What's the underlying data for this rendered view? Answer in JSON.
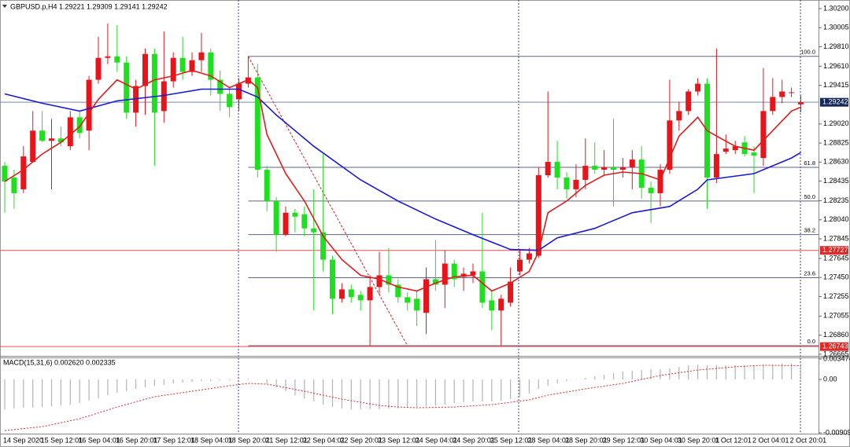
{
  "chart_data": [
    {
      "type": "candlestick",
      "title": "GBPUSD.p,H4  1.29221 1.29309 1.29141 1.29242",
      "categories": [
        "14 Sep 2020",
        null,
        null,
        null,
        "15 Sep 12:01",
        null,
        null,
        null,
        "16 Sep 04:01",
        null,
        null,
        null,
        "16 Sep 20:01",
        null,
        null,
        null,
        "17 Sep 12:01",
        null,
        null,
        null,
        "18 Sep 04:01",
        null,
        null,
        null,
        "18 Sep 20:01",
        null,
        null,
        null,
        "21 Sep 12:01",
        null,
        null,
        null,
        "22 Sep 04:01",
        null,
        null,
        null,
        "22 Sep 20:01",
        null,
        null,
        null,
        "23 Sep 12:01",
        null,
        null,
        null,
        "24 Sep 04:01",
        null,
        null,
        null,
        "24 Sep 20:01",
        null,
        null,
        null,
        "25 Sep 12:01",
        null,
        null,
        null,
        "28 Sep 04:01",
        null,
        null,
        null,
        "28 Sep 20:01",
        null,
        null,
        null,
        "29 Sep 12:01",
        null,
        null,
        null,
        "30 Sep 04:01",
        null,
        null,
        null,
        "30 Sep 20:01",
        null,
        null,
        null,
        "1 Oct 12:01",
        null,
        null,
        null,
        "2 Oct 04:01",
        null,
        null,
        null,
        "2 Oct 20:01",
        null
      ],
      "open": [
        1.28592,
        1.28472,
        1.28352,
        1.28632,
        1.28952,
        1.28848,
        1.28872,
        1.28792,
        1.29088,
        1.28952,
        1.29472,
        1.29696,
        1.29712,
        1.29648,
        1.29136,
        1.29408,
        1.29736,
        1.29152,
        1.29456,
        1.29696,
        1.29552,
        1.29672,
        1.29752,
        1.29472,
        1.29328,
        1.29272,
        1.29432,
        1.29496,
        1.28552,
        1.28232,
        1.27888,
        1.28112,
        1.28096,
        1.27952,
        1.27912,
        1.27632,
        1.27232,
        1.27328,
        1.27272,
        1.27216,
        1.27352,
        1.27472,
        1.27376,
        1.27248,
        1.27232,
        1.27088,
        1.27432,
        1.27376,
        1.27592,
        1.27456,
        1.27472,
        1.27512,
        1.27216,
        1.27112,
        1.27192,
        1.27512,
        1.27632,
        1.27672,
        1.28496,
        1.28632,
        1.28472,
        1.28352,
        1.28448,
        1.28592,
        1.28552,
        1.28576,
        1.28552,
        1.28576,
        1.28656,
        1.28368,
        1.28312,
        1.28552,
        1.29056,
        1.29152,
        1.29352,
        1.29432,
        1.28472,
        1.28736,
        1.28752,
        1.28832,
        1.28728,
        1.28672,
        1.29152,
        1.29296,
        1.29336,
        1.29221
      ],
      "high": [
        1.28632,
        1.28552,
        1.28792,
        1.29152,
        1.29152,
        1.29072,
        1.28992,
        1.29152,
        1.29152,
        1.29512,
        1.29912,
        1.30048,
        1.30032,
        1.29712,
        1.29472,
        1.29792,
        1.29792,
        1.29968,
        1.29752,
        1.29912,
        1.29752,
        1.29952,
        1.29792,
        1.29568,
        1.29392,
        1.29488,
        1.29712,
        1.29632,
        1.28592,
        1.28272,
        1.28176,
        1.28152,
        1.28176,
        1.28352,
        1.28712,
        1.27672,
        1.27392,
        1.27376,
        1.27312,
        1.27472,
        1.27712,
        1.27752,
        1.27432,
        1.27296,
        1.27312,
        1.27552,
        1.27832,
        1.27728,
        1.27632,
        1.27552,
        1.27592,
        1.28112,
        1.27312,
        1.27272,
        1.27552,
        1.27728,
        1.27752,
        1.28576,
        1.29352,
        1.28848,
        1.28528,
        1.28608,
        1.28872,
        1.28832,
        1.28752,
        1.29072,
        1.28672,
        1.28752,
        1.28792,
        1.28432,
        1.28608,
        1.29472,
        1.29248,
        1.29376,
        1.29488,
        1.29488,
        1.29792,
        1.28912,
        1.28848,
        1.28896,
        1.28792,
        1.29592,
        1.29488,
        1.29472,
        1.29392,
        1.29309
      ],
      "low": [
        1.28112,
        1.28152,
        1.28312,
        1.28632,
        1.28832,
        1.28352,
        1.28792,
        1.28752,
        1.28872,
        1.28752,
        1.29432,
        1.29632,
        1.29552,
        1.29072,
        1.28992,
        1.29112,
        1.28592,
        1.29032,
        1.29392,
        1.29472,
        1.29512,
        1.29552,
        1.29312,
        1.29152,
        1.29088,
        1.29152,
        1.29392,
        1.28472,
        1.28128,
        1.27712,
        1.27872,
        1.27912,
        1.27872,
        1.27112,
        1.27512,
        1.27072,
        1.27192,
        1.27192,
        1.27112,
        1.26752,
        1.27272,
        1.27296,
        1.27192,
        1.27112,
        1.26952,
        1.26872,
        1.27312,
        1.27136,
        1.27352,
        1.27312,
        1.27392,
        1.27136,
        1.26912,
        1.26752,
        1.27152,
        1.27472,
        1.27592,
        1.27648,
        1.28472,
        1.28352,
        1.28256,
        1.28272,
        1.28352,
        1.28512,
        1.28496,
        1.28176,
        1.28472,
        1.28352,
        1.28256,
        1.28008,
        1.28176,
        1.28512,
        1.28952,
        1.29112,
        1.29312,
        1.28152,
        1.28416,
        1.28712,
        1.28712,
        1.28688,
        1.28312,
        1.28592,
        1.29112,
        1.29232,
        1.29296,
        1.29141
      ],
      "close": [
        1.28432,
        1.28312,
        1.28688,
        1.28952,
        1.28848,
        1.28872,
        1.28832,
        1.29088,
        1.28928,
        1.29472,
        1.29696,
        1.29712,
        1.29648,
        1.29136,
        1.29408,
        1.29736,
        1.29136,
        1.29456,
        1.29696,
        1.29552,
        1.29672,
        1.29752,
        1.29472,
        1.29328,
        1.29192,
        1.29432,
        1.29496,
        1.28552,
        1.28232,
        1.27888,
        1.28112,
        1.28072,
        1.27952,
        1.27912,
        1.27632,
        1.27232,
        1.27328,
        1.27248,
        1.27216,
        1.27352,
        1.27472,
        1.27376,
        1.27248,
        1.27192,
        1.27112,
        1.27432,
        1.27376,
        1.27592,
        1.27432,
        1.27488,
        1.27512,
        1.27192,
        1.27112,
        1.27232,
        1.27408,
        1.27632,
        1.27696,
        1.28496,
        1.28632,
        1.28472,
        1.28352,
        1.28448,
        1.28592,
        1.28552,
        1.28576,
        1.28552,
        1.28576,
        1.28656,
        1.28368,
        1.28312,
        1.28552,
        1.29056,
        1.29152,
        1.29352,
        1.29432,
        1.28472,
        1.28712,
        1.28768,
        1.28792,
        1.28712,
        1.28696,
        1.29152,
        1.29296,
        1.29352,
        1.29344,
        1.29242
      ],
      "up_color": "#e8141a",
      "down_color": "#1fe01f",
      "ylim": [
        1.26656,
        1.30272
      ],
      "yticks": [
        {
          "value": 1.302,
          "label": "1.30200"
        },
        1.30005,
        {
          "value": 1.2981,
          "label": "1.29810"
        },
        {
          "value": 1.2961,
          "label": "1.29610"
        },
        1.29415,
        {
          "value": 1.2902,
          "label": "1.29020"
        },
        1.28825,
        {
          "value": 1.2863,
          "label": "1.28630"
        },
        1.28435,
        1.28235,
        {
          "value": 1.2804,
          "label": "1.28040"
        },
        1.27845,
        1.27645,
        {
          "value": 1.2745,
          "label": "1.27450"
        },
        1.27255,
        1.27055,
        {
          "value": 1.2686,
          "label": "1.26860"
        },
        1.26665
      ],
      "lines": [
        {
          "color": "#1a1ad0",
          "x": [
            0,
            4,
            8,
            12,
            17,
            21,
            25,
            27,
            29,
            33,
            38,
            42,
            46,
            50,
            54,
            57,
            59,
            63,
            67,
            71,
            74,
            75,
            80,
            84,
            85
          ],
          "values": [
            1.29328,
            1.29232,
            1.29152,
            1.29256,
            1.29312,
            1.29376,
            1.29376,
            1.29296,
            1.29112,
            1.28792,
            1.28448,
            1.28232,
            1.28048,
            1.27888,
            1.27736,
            1.27728,
            1.27856,
            1.27952,
            1.28112,
            1.28176,
            1.28352,
            1.28448,
            1.28512,
            1.28672,
            1.28728
          ]
        },
        {
          "color": "#e01c1c",
          "x": [
            0,
            2,
            4,
            6,
            8,
            10,
            12,
            14,
            16,
            18,
            20,
            22,
            24,
            26,
            27,
            28,
            30,
            32,
            34,
            36,
            38,
            40,
            42,
            44,
            46,
            48,
            50,
            52,
            54,
            56,
            57,
            58,
            60,
            62,
            64,
            66,
            68,
            70,
            71,
            72,
            74,
            75,
            76,
            78,
            80,
            82,
            84,
            85
          ],
          "values": [
            1.28432,
            1.28552,
            1.28712,
            1.28832,
            1.28992,
            1.29272,
            1.29472,
            1.29376,
            1.29472,
            1.29512,
            1.29568,
            1.29512,
            1.29392,
            1.29472,
            1.29392,
            1.28912,
            1.28512,
            1.28232,
            1.27872,
            1.27632,
            1.27472,
            1.27432,
            1.27352,
            1.27312,
            1.27392,
            1.27456,
            1.27472,
            1.27312,
            1.27392,
            1.27512,
            1.27712,
            1.28112,
            1.28232,
            1.28392,
            1.28496,
            1.28528,
            1.28512,
            1.28448,
            1.28672,
            1.28896,
            1.29088,
            1.28952,
            1.28896,
            1.28792,
            1.28752,
            1.28952,
            1.29152,
            1.29192
          ]
        }
      ],
      "trendline": {
        "color": "#e01c1c",
        "x": [
          26,
          43
        ],
        "values": [
          1.29712,
          1.26752
        ]
      },
      "fib_from": 26,
      "fib_color": "#5a6684",
      "fib_levels": [
        {
          "label": "100.0",
          "value": 1.29712
        },
        {
          "label": "61.8",
          "value": 1.28576
        },
        {
          "label": "50.0",
          "value": 1.28232
        },
        {
          "label": "38.2",
          "value": 1.27888
        },
        {
          "label": "23.6",
          "value": 1.27448
        },
        {
          "label": "0.0",
          "value": 1.26752
        }
      ],
      "price_lines": [
        {
          "value": 1.29242,
          "color": "#7d88a6",
          "box": "#14285a"
        },
        {
          "value": 1.27727,
          "color": "#ef4a4a",
          "box": "#e02a2a"
        },
        {
          "value": 1.26743,
          "color": "#ef4a4a",
          "box": "#e02a2a"
        }
      ]
    },
    {
      "type": "bar",
      "title": "MACD(15,31,6) 0.002620 0.002335",
      "values": [
        -0.005092,
        -0.004958,
        -0.004824,
        -0.004824,
        -0.00469,
        -0.004556,
        -0.004422,
        -0.004288,
        -0.00402,
        -0.003618,
        -0.003216,
        -0.00268,
        -0.002278,
        -0.00201,
        -0.001608,
        -0.00134,
        -0.001072,
        -0.000938,
        -0.00067,
        -0.000536,
        -0.000402,
        -0.000268,
        -0.000268,
        -0.000134,
        -0.000134,
        0,
        0.000134,
        0,
        -0.00067,
        -0.00134,
        -0.00201,
        -0.00268,
        -0.003216,
        -0.003752,
        -0.004288,
        -0.00469,
        -0.004958,
        -0.005092,
        -0.005092,
        -0.005092,
        -0.005092,
        -0.004958,
        -0.004958,
        -0.004824,
        -0.00469,
        -0.004556,
        -0.004422,
        -0.004288,
        -0.00402,
        -0.003886,
        -0.003752,
        -0.003752,
        -0.003752,
        -0.003618,
        -0.00335,
        -0.002948,
        -0.002412,
        -0.001608,
        -0.001072,
        -0.00067,
        -0.000268,
        0,
        0.000268,
        0.000536,
        0.000804,
        0.001072,
        0.00134,
        0.001474,
        0.001608,
        0.001742,
        0.001742,
        0.001876,
        0.002144,
        0.002412,
        0.002546,
        0.002412,
        0.002412,
        0.002412,
        0.002412,
        0.002412,
        0.002278,
        0.002412,
        0.002546,
        0.00268,
        0.00268,
        0.00262
      ],
      "color": "#b4b4b4",
      "signal": {
        "color": "#e02a2a",
        "x": [
          0,
          4,
          8,
          12,
          16,
          20,
          24,
          26,
          28,
          32,
          36,
          40,
          42,
          44,
          48,
          52,
          56,
          58,
          62,
          66,
          70,
          74,
          78,
          81,
          85
        ],
        "values": [
          -0.00871,
          -0.00804,
          -0.0067,
          -0.00469,
          -0.002948,
          -0.00201,
          -0.001072,
          -0.00067,
          -0.000804,
          -0.00201,
          -0.00335,
          -0.004422,
          -0.00469,
          -0.004824,
          -0.00469,
          -0.004288,
          -0.003484,
          -0.00268,
          -0.001608,
          -0.00067,
          0.00067,
          0.001608,
          0.002144,
          0.002412,
          0.002335
        ]
      },
      "ylim": [
        -0.009091,
        0.003474
      ],
      "yticks": [
        0.003474,
        {
          "value": 0,
          "label": "0.00"
        },
        -0.009091
      ]
    }
  ]
}
